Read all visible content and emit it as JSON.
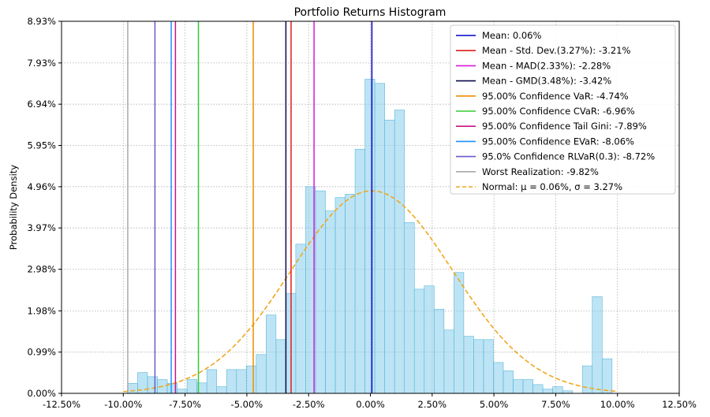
{
  "chart_data": {
    "type": "histogram",
    "title": "Portfolio Returns Histogram",
    "ylabel": "Probability Density",
    "xlabel": "",
    "xlim": [
      -12.5,
      12.5
    ],
    "ylim": [
      0,
      8.93
    ],
    "xticks": [
      -12.5,
      -10,
      -7.5,
      -5,
      -2.5,
      0,
      2.5,
      5,
      7.5,
      10,
      12.5
    ],
    "xtick_labels": [
      "-12.50%",
      "-10.00%",
      "-7.50%",
      "-5.00%",
      "-2.50%",
      "0.00%",
      "2.50%",
      "5.00%",
      "7.50%",
      "10.00%",
      "12.50%"
    ],
    "yticks": [
      0,
      0.99,
      1.98,
      2.98,
      3.97,
      4.96,
      5.95,
      6.94,
      7.93,
      8.93
    ],
    "ytick_labels": [
      "0.00%",
      "0.99%",
      "1.98%",
      "2.98%",
      "3.97%",
      "4.96%",
      "5.95%",
      "6.94%",
      "7.93%",
      "8.93%"
    ],
    "grid": true,
    "legend_position": "top-right",
    "histogram": {
      "color": "#87ceeb",
      "edge_color": "#5bb6dd",
      "bin_edges": [
        -9.82,
        -9.42,
        -9.02,
        -8.62,
        -8.22,
        -7.82,
        -7.42,
        -7.02,
        -6.62,
        -6.22,
        -5.82,
        -5.42,
        -5.02,
        -4.62,
        -4.22,
        -3.82,
        -3.42,
        -3.02,
        -2.62,
        -2.22,
        -1.82,
        -1.42,
        -1.02,
        -0.62,
        -0.22,
        0.18,
        0.58,
        0.98,
        1.38,
        1.78,
        2.18,
        2.58,
        2.98,
        3.38,
        3.78,
        4.18,
        4.58,
        4.98,
        5.38,
        5.78,
        6.18,
        6.58,
        6.98,
        7.38,
        7.78,
        8.18,
        8.58,
        8.98,
        9.38,
        9.78
      ],
      "densities": [
        0.24,
        0.5,
        0.4,
        0.33,
        0.24,
        0.1,
        0.33,
        0.25,
        0.57,
        0.16,
        0.57,
        0.57,
        0.66,
        0.93,
        1.88,
        1.29,
        2.4,
        3.58,
        4.96,
        4.86,
        4.38,
        4.7,
        4.78,
        5.86,
        7.54,
        7.44,
        6.56,
        6.8,
        4.1,
        2.5,
        2.58,
        2.02,
        1.52,
        2.9,
        1.37,
        1.29,
        1.29,
        0.74,
        0.54,
        0.33,
        0.33,
        0.21,
        0.1,
        0.16,
        0.06,
        0.0,
        0.66,
        2.32,
        0.83,
        0.58
      ]
    },
    "vlines": [
      {
        "label": "Mean: 0.06%",
        "x": 0.06,
        "color": "#0000cd"
      },
      {
        "label": "Mean - Std. Dev.(3.27%): -3.21%",
        "x": -3.21,
        "color": "#e01b1b"
      },
      {
        "label": "Mean - MAD(2.33%): -2.28%",
        "x": -2.28,
        "color": "#d61ad6"
      },
      {
        "label": "Mean - GMD(3.48%): -3.42%",
        "x": -3.42,
        "color": "#0a0a4a"
      },
      {
        "label": "95.00% Confidence VaR: -4.74%",
        "x": -4.74,
        "color": "#f08c00"
      },
      {
        "label": "95.00% Confidence CVaR: -6.96%",
        "x": -6.96,
        "color": "#33cc33"
      },
      {
        "label": "95.00% Confidence Tail Gini: -7.89%",
        "x": -7.89,
        "color": "#c71585"
      },
      {
        "label": "95.00% Confidence EVaR: -8.06%",
        "x": -8.06,
        "color": "#1e90ff"
      },
      {
        "label": "95.0% Confidence RLVaR(0.3): -8.72%",
        "x": -8.72,
        "color": "#6a5acd"
      },
      {
        "label": "Worst Realization: -9.82%",
        "x": -9.82,
        "color": "#a9a9a9"
      }
    ],
    "normal_curve": {
      "label": "Normal: μ = 0.06%, σ = 3.27%",
      "mu": 0.06,
      "sigma": 3.27,
      "peak_density": 4.86,
      "x_range": [
        -10.0,
        10.0
      ],
      "color": "#f0a81e",
      "style": "dashed"
    }
  }
}
